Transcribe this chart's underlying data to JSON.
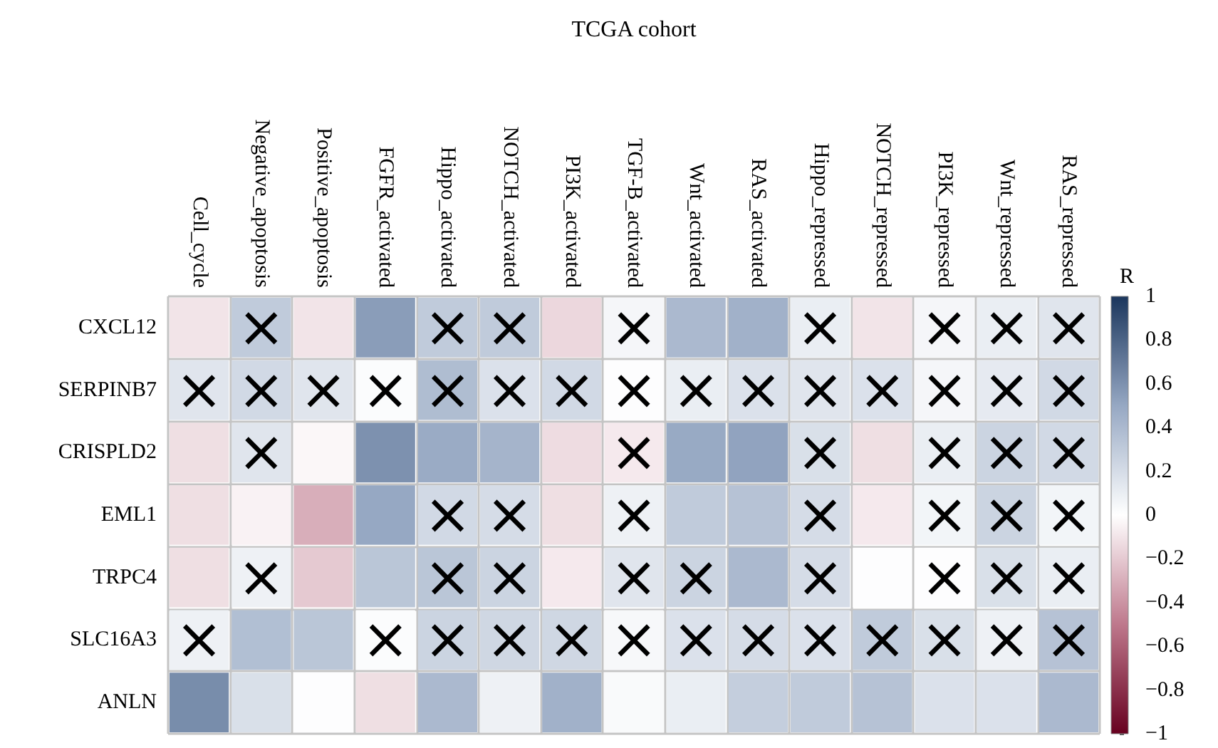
{
  "chart_data": {
    "type": "heatmap",
    "title": "TCGA cohort",
    "clabel": "R",
    "categories": [
      "Cell_cycle",
      "Negative_apoptosis",
      "Positive_apoptosis",
      "FGFR_activated",
      "Hippo_activated",
      "NOTCH_activated",
      "PI3K_activated",
      "TGF-B_activated",
      "Wnt_activated",
      "RAS_activated",
      "Hippo_repressed",
      "NOTCH_repressed",
      "PI3K_repressed",
      "Wnt_repressed",
      "RAS_repressed"
    ],
    "y_categories": [
      "CXCL12",
      "SERPINB7",
      "CRISPLD2",
      "EML1",
      "TRPC4",
      "SLC16A3",
      "ANLN"
    ],
    "cells": [
      [
        -0.1,
        0.3,
        -0.1,
        0.55,
        0.3,
        0.3,
        -0.15,
        0.05,
        0.4,
        0.45,
        0.1,
        -0.1,
        0.05,
        0.1,
        0.15
      ],
      [
        0.15,
        0.22,
        0.15,
        0.02,
        0.38,
        0.17,
        0.22,
        0.01,
        0.1,
        0.17,
        0.15,
        0.17,
        0.05,
        0.12,
        0.22
      ],
      [
        -0.12,
        0.15,
        -0.03,
        0.6,
        0.48,
        0.43,
        -0.13,
        -0.08,
        0.49,
        0.52,
        0.18,
        -0.12,
        0.1,
        0.25,
        0.22
      ],
      [
        -0.12,
        -0.05,
        -0.3,
        0.5,
        0.22,
        0.2,
        -0.12,
        0.08,
        0.3,
        0.35,
        0.2,
        -0.08,
        0.06,
        0.25,
        0.06
      ],
      [
        -0.12,
        0.08,
        -0.2,
        0.33,
        0.33,
        0.25,
        -0.08,
        0.15,
        0.25,
        0.4,
        0.2,
        0.01,
        0.01,
        0.18,
        0.1
      ],
      [
        0.08,
        0.37,
        0.33,
        0.02,
        0.25,
        0.23,
        0.23,
        0.04,
        0.17,
        0.2,
        0.17,
        0.3,
        0.18,
        0.08,
        0.35
      ],
      [
        0.62,
        0.18,
        0.01,
        -0.12,
        0.4,
        0.08,
        0.45,
        0.03,
        0.1,
        0.28,
        0.3,
        0.35,
        0.17,
        0.17,
        0.4
      ]
    ],
    "cell_labels": [
      [
        null,
        "×",
        null,
        null,
        "×",
        "×",
        null,
        "×",
        null,
        null,
        "×",
        null,
        "×",
        "×",
        "×"
      ],
      [
        "×",
        "×",
        "×",
        "×",
        "×",
        "×",
        "×",
        "×",
        "×",
        "×",
        "×",
        "×",
        "×",
        "×",
        "×"
      ],
      [
        null,
        "×",
        null,
        null,
        null,
        null,
        null,
        "×",
        null,
        null,
        "×",
        null,
        "×",
        "×",
        "×"
      ],
      [
        null,
        null,
        null,
        null,
        "×",
        "×",
        null,
        "×",
        null,
        null,
        "×",
        null,
        "×",
        "×",
        "×"
      ],
      [
        null,
        "×",
        null,
        null,
        "×",
        "×",
        null,
        "×",
        "×",
        null,
        "×",
        null,
        "×",
        "×",
        "×"
      ],
      [
        "×",
        null,
        null,
        "×",
        "×",
        "×",
        "×",
        "×",
        "×",
        "×",
        "×",
        "×",
        "×",
        "×",
        "×"
      ],
      [
        null,
        null,
        null,
        null,
        null,
        null,
        null,
        null,
        null,
        null,
        null,
        null,
        null,
        null,
        null
      ]
    ],
    "clim": [
      -1,
      1
    ],
    "grid": true,
    "cticks": [
      1,
      0.8,
      0.6,
      0.4,
      0.2,
      0,
      {
        "value": -0.2,
        "label": "−0.2"
      },
      {
        "value": -0.4,
        "label": "−0.4"
      },
      {
        "value": -0.6,
        "label": "−0.6"
      },
      {
        "value": -0.8,
        "label": "−0.8"
      },
      {
        "value": -1,
        "label": "−1"
      }
    ]
  }
}
